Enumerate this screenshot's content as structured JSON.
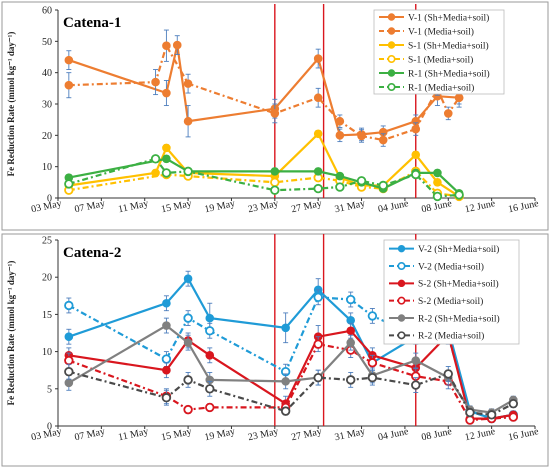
{
  "chart_data": [
    {
      "type": "line",
      "title": "Catena-1",
      "ylabel": "Fe Reduction Rate (mmol kg⁻¹ day⁻¹)",
      "xlabel": "",
      "ylim": [
        0,
        60
      ],
      "yticks": [
        0,
        10,
        20,
        30,
        40,
        50,
        60
      ],
      "xlim": [
        0,
        44
      ],
      "xticks": [
        {
          "x": 0,
          "label": "03 May"
        },
        {
          "x": 4,
          "label": "07 May"
        },
        {
          "x": 8,
          "label": "11 May"
        },
        {
          "x": 12,
          "label": "15 May"
        },
        {
          "x": 16,
          "label": "19 May"
        },
        {
          "x": 20,
          "label": "23 May"
        },
        {
          "x": 24,
          "label": "27 May"
        },
        {
          "x": 28,
          "label": "31 May"
        },
        {
          "x": 32,
          "label": "04 June"
        },
        {
          "x": 36,
          "label": "08 June"
        },
        {
          "x": 40,
          "label": "12 June"
        },
        {
          "x": 44,
          "label": "16 June"
        }
      ],
      "vlines": [
        20,
        24.5,
        33
      ],
      "grid": false,
      "legend": "top-right",
      "series": [
        {
          "name": "V-1 (Sh+Media+soil)",
          "color": "#ed7d31",
          "dash": false,
          "marker": "filled",
          "x": [
            1,
            10,
            11,
            12,
            20,
            24,
            26,
            28,
            30,
            33,
            35,
            37
          ],
          "y": [
            44,
            33.5,
            48.8,
            24.5,
            28.5,
            44.5,
            20,
            20.3,
            21,
            24.5,
            32.5,
            32
          ],
          "err": [
            3,
            4,
            3,
            5,
            3,
            3,
            2,
            2,
            2,
            2,
            3,
            3
          ]
        },
        {
          "name": "V-1 (Media+soil)",
          "color": "#ed7d31",
          "dash": true,
          "marker": "filled",
          "x": [
            1,
            9,
            10,
            12,
            20,
            24,
            26,
            28,
            30,
            33,
            35,
            36,
            37
          ],
          "y": [
            36,
            37,
            48.6,
            36.5,
            27,
            32,
            24.5,
            19.8,
            18.5,
            22,
            34.8,
            27,
            32
          ],
          "err": [
            4,
            4,
            5,
            3,
            3,
            3,
            2,
            2,
            2,
            2,
            2,
            2,
            2
          ]
        },
        {
          "name": "S-1 (Sh+Media+soil)",
          "color": "#ffc000",
          "dash": false,
          "marker": "filled",
          "x": [
            1,
            9,
            10,
            12,
            20,
            24,
            26,
            28,
            30,
            33,
            35,
            37
          ],
          "y": [
            4,
            8,
            16,
            8,
            7,
            20.5,
            6.5,
            4,
            4,
            13.8,
            5,
            0.5
          ],
          "err": [
            1,
            1,
            1,
            1,
            1,
            1,
            1,
            1,
            1,
            1,
            1,
            0.5
          ]
        },
        {
          "name": "S-1 (Media+soil)",
          "color": "#ffc000",
          "dash": true,
          "marker": "open",
          "x": [
            1,
            10,
            12,
            20,
            24,
            26,
            28,
            30,
            33,
            35,
            37
          ],
          "y": [
            2.5,
            7.5,
            7,
            5,
            6.5,
            5.5,
            3.5,
            3,
            8.5,
            1.5,
            0.5
          ],
          "err": [
            1,
            1,
            1,
            1,
            1,
            1,
            1,
            1,
            1,
            0.5,
            0.5
          ]
        },
        {
          "name": "R-1 (Sh+Media+soil)",
          "color": "#3cb043",
          "dash": false,
          "marker": "filled",
          "x": [
            1,
            10,
            12,
            20,
            24,
            26,
            28,
            30,
            33,
            35,
            37
          ],
          "y": [
            6.5,
            12.5,
            8.5,
            8.5,
            8.5,
            7,
            5,
            3,
            8,
            8,
            1.5
          ],
          "err": [
            1,
            1,
            1,
            1,
            1,
            1,
            1,
            1,
            1,
            1,
            0.5
          ]
        },
        {
          "name": "R-1 (Media+soil)",
          "color": "#3cb043",
          "dash": true,
          "marker": "open",
          "x": [
            1,
            9,
            10,
            12,
            20,
            24,
            26,
            28,
            30,
            33,
            35,
            37
          ],
          "y": [
            4.5,
            12.5,
            8,
            8.5,
            2.5,
            3,
            3.5,
            5.5,
            4,
            7.5,
            0.5,
            1
          ],
          "err": [
            1,
            1,
            1,
            1,
            1,
            1,
            1,
            1,
            1,
            1,
            0.5,
            0.5
          ]
        }
      ]
    },
    {
      "type": "line",
      "title": "Catena-2",
      "ylabel": "Fe Reduction Rate (mmol kg⁻¹ day⁻¹)",
      "xlabel": "",
      "ylim": [
        0,
        25
      ],
      "yticks": [
        0,
        5,
        10,
        15,
        20,
        25
      ],
      "xlim": [
        0,
        44
      ],
      "xticks": [
        {
          "x": 0,
          "label": "03 May"
        },
        {
          "x": 4,
          "label": "07 May"
        },
        {
          "x": 8,
          "label": "11 May"
        },
        {
          "x": 12,
          "label": "15 May"
        },
        {
          "x": 16,
          "label": "19 May"
        },
        {
          "x": 20,
          "label": "23 May"
        },
        {
          "x": 24,
          "label": "27 May"
        },
        {
          "x": 28,
          "label": "31 May"
        },
        {
          "x": 32,
          "label": "04 June"
        },
        {
          "x": 36,
          "label": "08 June"
        },
        {
          "x": 40,
          "label": "12 June"
        },
        {
          "x": 44,
          "label": "16 June"
        }
      ],
      "vlines": [
        20,
        24.5,
        33
      ],
      "grid": false,
      "legend": "top-right",
      "series": [
        {
          "name": "V-2 (Sh+Media+soil)",
          "color": "#1f9bd7",
          "dash": false,
          "marker": "filled",
          "x": [
            1,
            10,
            12,
            14,
            21,
            24,
            27,
            29,
            33,
            36,
            38,
            40,
            42
          ],
          "y": [
            12,
            16.5,
            19.8,
            14.5,
            13.2,
            18.3,
            14.2,
            8.5,
            12,
            13,
            2,
            1,
            1.5
          ],
          "err": [
            1,
            1,
            1,
            2,
            2,
            1.5,
            1,
            1,
            1,
            1,
            0.5,
            0.5,
            0.5
          ]
        },
        {
          "name": "V-2 (Media+soil)",
          "color": "#1f9bd7",
          "dash": true,
          "marker": "open",
          "x": [
            1,
            10,
            12,
            14,
            21,
            24,
            27,
            29,
            33,
            36,
            38,
            40,
            42
          ],
          "y": [
            16.2,
            9,
            14.5,
            12.8,
            7.3,
            17.3,
            17,
            14.8,
            12.2,
            12,
            2,
            1,
            1.5
          ],
          "err": [
            1,
            1,
            1,
            1,
            1,
            1,
            1,
            1,
            1,
            1,
            0.5,
            0.5,
            0.5
          ]
        },
        {
          "name": "S-2 (Sh+Media+soil)",
          "color": "#d9161e",
          "dash": false,
          "marker": "filled",
          "x": [
            1,
            10,
            12,
            14,
            21,
            24,
            27,
            29,
            33,
            36,
            38,
            40,
            42
          ],
          "y": [
            9.5,
            7.5,
            11.5,
            9.5,
            3,
            12,
            12.8,
            9.5,
            7.8,
            12.3,
            1,
            1,
            1.5
          ],
          "err": [
            1,
            1,
            1,
            1,
            1,
            1.5,
            1,
            1,
            1,
            1,
            0.5,
            0.5,
            0.5
          ]
        },
        {
          "name": "S-2 (Media+soil)",
          "color": "#d9161e",
          "dash": true,
          "marker": "open",
          "x": [
            1,
            10,
            12,
            14,
            21,
            24,
            27,
            29,
            33,
            36,
            38,
            40,
            42
          ],
          "y": [
            8.8,
            4,
            2.2,
            2.5,
            2.5,
            11,
            10.2,
            8.5,
            6.7,
            6,
            0.8,
            1,
            1.2
          ],
          "err": [
            1,
            1,
            0.5,
            0.5,
            0.5,
            1,
            1,
            1,
            1,
            1,
            0.5,
            0.5,
            0.5
          ]
        },
        {
          "name": "R-2 (Sh+Media+soil)",
          "color": "#808080",
          "dash": false,
          "marker": "filled",
          "x": [
            1,
            10,
            12,
            14,
            21,
            24,
            27,
            29,
            33,
            36,
            38,
            40,
            42
          ],
          "y": [
            5.8,
            13.5,
            11.2,
            6.2,
            6,
            6.5,
            11.2,
            6.8,
            8.8,
            6.5,
            2.2,
            1.8,
            3.5
          ],
          "err": [
            1,
            1,
            1,
            1,
            1,
            1,
            1,
            1,
            1,
            1,
            0.5,
            0.5,
            0.5
          ]
        },
        {
          "name": "R-2 (Media+soil)",
          "color": "#4a4a4a",
          "dash": true,
          "marker": "open",
          "x": [
            1,
            10,
            12,
            14,
            21,
            24,
            27,
            29,
            33,
            36,
            38,
            40,
            42
          ],
          "y": [
            7.3,
            3.8,
            6.2,
            5,
            2,
            6.5,
            6.2,
            6.5,
            5.5,
            7,
            1.8,
            1.5,
            3
          ],
          "err": [
            1,
            1,
            1,
            1,
            0.5,
            1,
            1,
            1,
            1,
            1,
            0.5,
            0.5,
            0.5
          ]
        }
      ]
    }
  ]
}
